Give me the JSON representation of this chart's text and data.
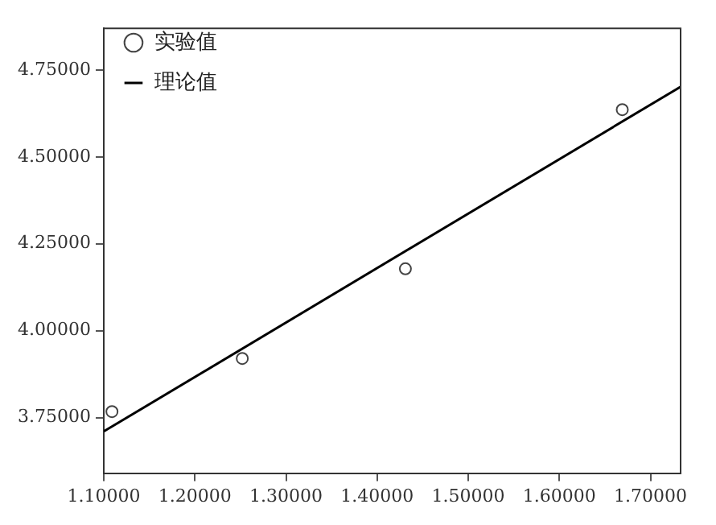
{
  "chart_data": {
    "type": "scatter",
    "legend": "top left",
    "grid": false,
    "xlim": [
      1.1,
      1.733
    ],
    "xticks": [
      {
        "value": 1.1,
        "label": "1.10000"
      },
      {
        "value": 1.2,
        "label": "1.20000"
      },
      {
        "value": 1.3,
        "label": "1.30000"
      },
      {
        "value": 1.4,
        "label": "1.40000"
      },
      {
        "value": 1.5,
        "label": "1.50000"
      },
      {
        "value": 1.6,
        "label": "1.60000"
      },
      {
        "value": 1.7,
        "label": "1.70000"
      }
    ],
    "ylim": [
      3.59,
      4.87
    ],
    "yticks": [
      {
        "value": 3.75,
        "label": "3.75000"
      },
      {
        "value": 4.0,
        "label": "4.00000"
      },
      {
        "value": 4.25,
        "label": "4.25000"
      },
      {
        "value": 4.5,
        "label": "4.50000"
      },
      {
        "value": 4.75,
        "label": "4.75000"
      }
    ],
    "series": [
      {
        "name": "实验值",
        "type": "scatter",
        "marker": "circle",
        "color": "#444444",
        "x": [
          1.109,
          1.252,
          1.431,
          1.669
        ],
        "values": [
          3.767,
          3.92,
          4.178,
          4.636
        ]
      },
      {
        "name": "理论值",
        "type": "line",
        "marker": "none",
        "line_style": "solid",
        "color": "#000000",
        "x": [
          1.1,
          1.733
        ],
        "values": [
          3.71,
          4.702
        ]
      }
    ]
  }
}
